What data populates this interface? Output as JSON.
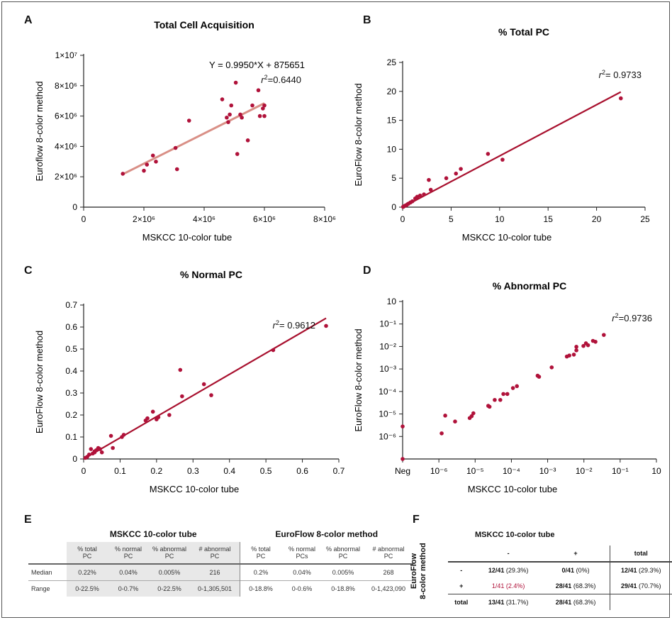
{
  "colors": {
    "point": "#b0123a",
    "fit_dark": "#a8102e",
    "fit_light": "#d98f86"
  },
  "chart_data": [
    {
      "panel": "A",
      "type": "scatter",
      "title": "Total Cell Acquisition",
      "xlabel": "MSKCC 10-color tube",
      "ylabel": "Euroflow 8-color method",
      "xlim": [
        0,
        8000000
      ],
      "ylim": [
        0,
        10000000
      ],
      "x_ticks": [
        "0",
        "2×10⁶",
        "4×10⁶",
        "6×10⁶",
        "8×10⁶"
      ],
      "y_ticks": [
        "0",
        "2×10⁶",
        "4×10⁶",
        "6×10⁶",
        "8×10⁶",
        "1×10⁷"
      ],
      "annotation_1": "Y = 0.9950*X + 875651",
      "annotation_2_var": "r",
      "annotation_2_sup": "2",
      "annotation_2_val": "=0.6440",
      "fit": {
        "slope": 0.995,
        "intercept": 875651,
        "x_range": [
          1300000,
          6000000
        ]
      },
      "x": [
        1300000,
        2000000,
        2100000,
        2300000,
        2400000,
        3050000,
        3100000,
        3500000,
        4600000,
        4750000,
        4800000,
        4850000,
        4900000,
        5050000,
        5100000,
        5200000,
        5250000,
        5450000,
        5600000,
        5800000,
        5850000,
        5950000,
        6000000,
        6000000
      ],
      "y": [
        2200000,
        2400000,
        2800000,
        3400000,
        3000000,
        3900000,
        2500000,
        5700000,
        7100000,
        5900000,
        5600000,
        6100000,
        6700000,
        8200000,
        3500000,
        6100000,
        5900000,
        4400000,
        6700000,
        7700000,
        6000000,
        6500000,
        6700000,
        6000000
      ]
    },
    {
      "panel": "B",
      "type": "scatter",
      "title": "% Total PC",
      "xlabel": "MSKCC 10-color tube",
      "ylabel": "EuroFlow 8-color method",
      "xlim": [
        0,
        25
      ],
      "ylim": [
        0,
        25
      ],
      "x_ticks": [
        "0",
        "5",
        "10",
        "15",
        "20",
        "25"
      ],
      "y_ticks": [
        "0",
        "5",
        "10",
        "15",
        "20",
        "25"
      ],
      "annotation_var": "r",
      "annotation_sup": "2",
      "annotation_val": "= 0.9733",
      "fit": {
        "x_range": [
          0,
          22.5
        ],
        "y_range": [
          0,
          19.9
        ]
      },
      "x": [
        0.05,
        0.1,
        0.2,
        0.3,
        0.4,
        0.5,
        0.6,
        0.8,
        1.0,
        1.3,
        1.5,
        1.8,
        2.2,
        2.7,
        2.9,
        4.5,
        5.5,
        6.0,
        8.8,
        10.3,
        22.5
      ],
      "y": [
        0.05,
        0.1,
        0.2,
        0.3,
        0.35,
        0.5,
        0.6,
        0.8,
        1.0,
        1.5,
        1.8,
        2.0,
        2.2,
        4.7,
        3.0,
        5.0,
        5.8,
        6.6,
        9.2,
        8.2,
        18.8
      ]
    },
    {
      "panel": "C",
      "type": "scatter",
      "title": "% Normal PC",
      "xlabel": "MSKCC 10-color tube",
      "ylabel": "EuroFlow 8-color method",
      "xlim": [
        0,
        0.7
      ],
      "ylim": [
        0,
        0.7
      ],
      "x_ticks": [
        "0",
        "0.1",
        "0.2",
        "0.3",
        "0.4",
        "0.5",
        "0.6",
        "0.7"
      ],
      "y_ticks": [
        "0",
        "0.1",
        "0.2",
        "0.3",
        "0.4",
        "0.5",
        "0.6",
        "0.7"
      ],
      "annotation_var": "r",
      "annotation_sup": "2",
      "annotation_val": "= 0.9612",
      "fit": {
        "x_range": [
          0,
          0.665
        ],
        "y_range": [
          0,
          0.64
        ]
      },
      "x": [
        0.005,
        0.01,
        0.015,
        0.02,
        0.025,
        0.03,
        0.03,
        0.035,
        0.04,
        0.045,
        0.05,
        0.075,
        0.08,
        0.105,
        0.11,
        0.17,
        0.175,
        0.19,
        0.2,
        0.205,
        0.235,
        0.265,
        0.27,
        0.33,
        0.35,
        0.52,
        0.665
      ],
      "y": [
        0.005,
        0.01,
        0.02,
        0.045,
        0.025,
        0.035,
        0.03,
        0.04,
        0.05,
        0.045,
        0.03,
        0.105,
        0.05,
        0.1,
        0.11,
        0.175,
        0.185,
        0.215,
        0.18,
        0.19,
        0.2,
        0.405,
        0.285,
        0.34,
        0.29,
        0.495,
        0.605
      ]
    },
    {
      "panel": "D",
      "type": "scatter",
      "title": "% Abnormal PC",
      "xlabel": "MSKCC 10-color tube",
      "ylabel": "EuroFlow 8-color method",
      "x_scale": "log",
      "y_scale": "log",
      "xlim_exp": [
        -7,
        1
      ],
      "ylim_exp": [
        -7,
        1
      ],
      "x_ticks": [
        "Neg",
        "10⁻⁶",
        "10⁻⁵",
        "10⁻⁴",
        "10⁻³",
        "10⁻²",
        "10⁻¹",
        "10"
      ],
      "y_ticks": [
        "10⁻⁶",
        "10⁻⁵",
        "10⁻⁴",
        "10⁻³",
        "10⁻²",
        "10⁻¹",
        "10"
      ],
      "annotation_var": "r",
      "annotation_sup": "2",
      "annotation_val": "=0.9736",
      "x": [
        "Neg",
        "Neg",
        1.7e-06,
        2.2e-06,
        4.5e-06,
        1.3e-05,
        1.5e-05,
        1.7e-05,
        5e-05,
        5.5e-05,
        8e-05,
        0.00012,
        0.00015,
        0.0002,
        0.0003,
        0.0004,
        0.0018,
        0.002,
        0.005,
        0.015,
        0.018,
        0.025,
        0.03,
        0.03,
        0.05,
        0.06,
        0.07,
        0.1,
        0.12,
        0.22
      ],
      "y": [
        4.5e-06,
        "Neg",
        2e-06,
        1.6e-05,
        8e-06,
        1.2e-05,
        1.5e-05,
        2.1e-05,
        5e-05,
        4.5e-05,
        0.0001,
        0.0001,
        0.0002,
        0.0002,
        0.0004,
        0.0005,
        0.0017,
        0.0015,
        0.0045,
        0.016,
        0.018,
        0.02,
        0.05,
        0.033,
        0.055,
        0.075,
        0.06,
        0.1,
        0.09,
        0.2
      ]
    }
  ],
  "panel_labels": {
    "a": "A",
    "b": "B",
    "c": "C",
    "d": "D",
    "e": "E",
    "f": "F"
  },
  "table_e": {
    "group1": "MSKCC 10-color tube",
    "group2": "EuroFlow 8-color method",
    "headers": [
      [
        "% total",
        "PC"
      ],
      [
        "% normal",
        "PC"
      ],
      [
        "% abnormal",
        "PC"
      ],
      [
        "# abnormal",
        "PC"
      ],
      [
        "% total",
        "PC"
      ],
      [
        "% normal",
        "PCs"
      ],
      [
        "% abnormal",
        "PC"
      ],
      [
        "# abnormal",
        "PC"
      ]
    ],
    "rows": [
      {
        "label": "Median",
        "cells": [
          "0.22%",
          "0.04%",
          "0.005%",
          "216",
          "0.2%",
          "0.04%",
          "0.005%",
          "268"
        ]
      },
      {
        "label": "Range",
        "cells": [
          "0-22.5%",
          "0-0.7%",
          "0-22.5%",
          "0-1,305,501",
          "0-18.8%",
          "0-0.6%",
          "0-18.8%",
          "0-1,423,090"
        ]
      }
    ]
  },
  "table_f": {
    "col_title": "MSKCC 10-color tube",
    "row_title_1": "EuroFlow",
    "row_title_2": "8-color method",
    "col_headers": [
      "-",
      "+",
      "total"
    ],
    "rows": [
      {
        "label": "-",
        "cells": [
          {
            "main": "12/41",
            "paren": "(29.3%)"
          },
          {
            "main": "0/41",
            "paren": "(0%)"
          },
          {
            "main": "12/41",
            "paren": "(29.3%)"
          }
        ]
      },
      {
        "label": "+",
        "cells": [
          {
            "main": "1/41",
            "paren": "(2.4%)"
          },
          {
            "main": "28/41",
            "paren": "(68.3%)"
          },
          {
            "main": "29/41",
            "paren": "(70.7%)"
          }
        ]
      },
      {
        "label": "total",
        "cells": [
          {
            "main": "13/41",
            "paren": "(31.7%)"
          },
          {
            "main": "28/41",
            "paren": "(68.3%)"
          },
          {
            "main": "",
            "paren": ""
          }
        ]
      }
    ]
  }
}
